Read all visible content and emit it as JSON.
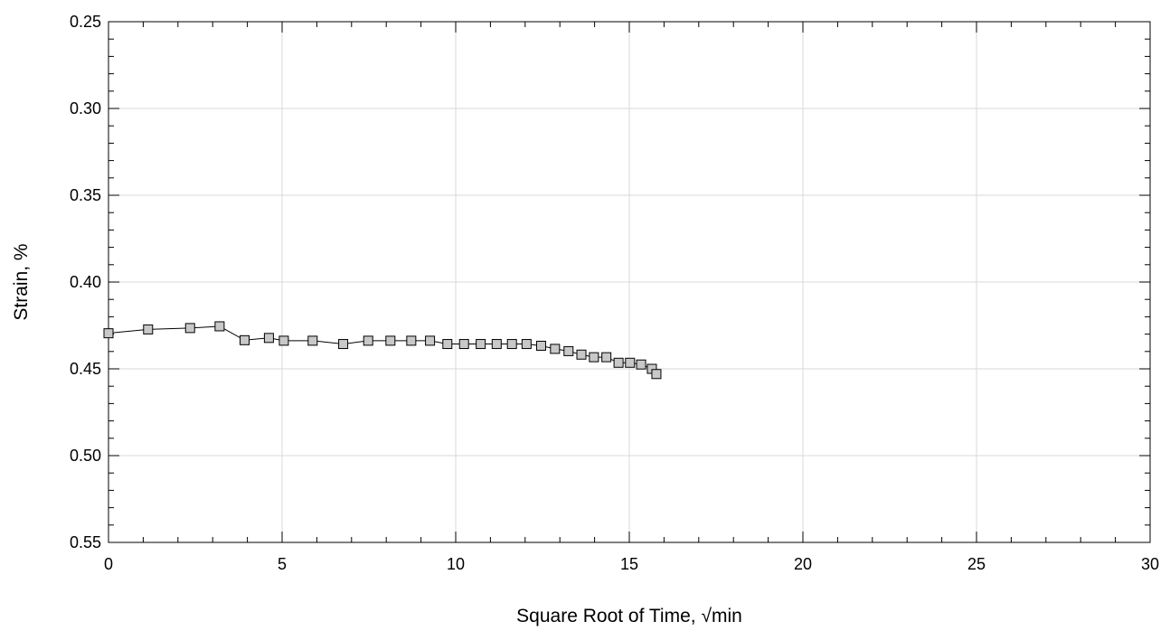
{
  "chart_data": {
    "type": "scatter",
    "title": "",
    "xlabel": "Square Root of Time, √min",
    "ylabel": "Strain, %",
    "xlim": [
      0,
      30
    ],
    "ylim": [
      0.25,
      0.55
    ],
    "y_inverted": true,
    "grid": true,
    "markers": "square",
    "connected": true,
    "x_ticks": [
      "0",
      "5",
      "10",
      "15",
      "20",
      "25",
      "30"
    ],
    "y_ticks": [
      "0.25",
      "0.30",
      "0.35",
      "0.40",
      "0.45",
      "0.50",
      "0.55"
    ],
    "colors": {
      "marker_fill": "#c8c8c8",
      "marker_stroke": "#000000",
      "line": "#000000",
      "grid": "#d9d9d9"
    },
    "series": [
      {
        "x": [
          0.0,
          1.14,
          2.35,
          3.2,
          3.92,
          4.62,
          5.05,
          5.88,
          6.76,
          7.48,
          8.12,
          8.72,
          9.26,
          9.76,
          10.24,
          10.72,
          11.18,
          11.62,
          12.04,
          12.46,
          12.86,
          13.25,
          13.62,
          13.98,
          14.34,
          14.69,
          15.02,
          15.34,
          15.65,
          15.78
        ],
        "y": [
          0.4295,
          0.4273,
          0.4265,
          0.4255,
          0.4335,
          0.4322,
          0.4338,
          0.4338,
          0.4357,
          0.4338,
          0.4338,
          0.4338,
          0.4338,
          0.4357,
          0.4357,
          0.4357,
          0.4357,
          0.4357,
          0.4357,
          0.4367,
          0.4385,
          0.4398,
          0.4418,
          0.4433,
          0.4433,
          0.4465,
          0.4465,
          0.4475,
          0.45,
          0.453
        ]
      }
    ]
  }
}
